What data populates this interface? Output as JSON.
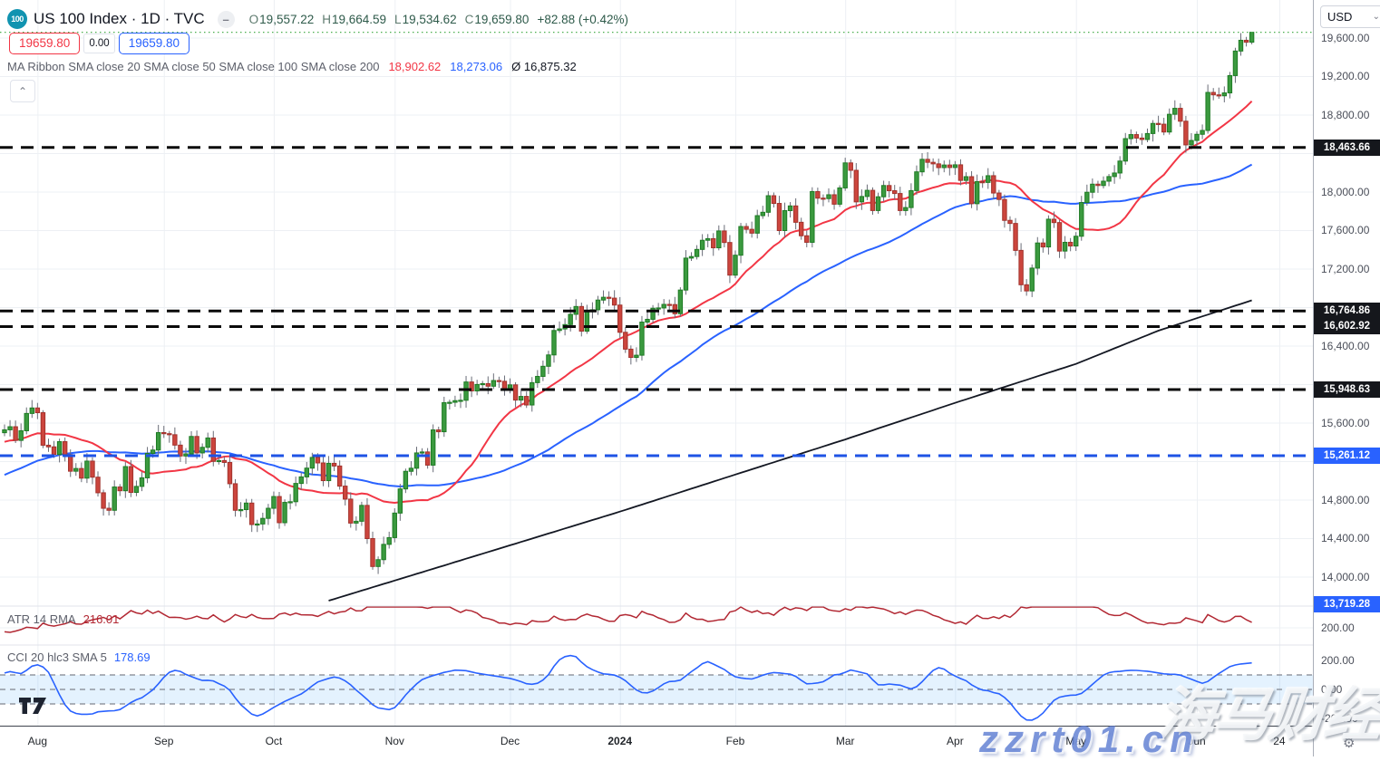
{
  "header": {
    "badge": "100",
    "title": "US 100 Index · 1D · TVC",
    "hide_icon": "–",
    "ohlc": {
      "o_l": "O",
      "o": "19,557.22",
      "h_l": "H",
      "h": "19,664.59",
      "l_l": "L",
      "l": "19,534.62",
      "c_l": "C",
      "c": "19,659.80",
      "change": "+82.88 (+0.42%)"
    },
    "sell": "19659.80",
    "spread": "0.00",
    "buy": "19659.80",
    "ma_ribbon": {
      "label": "MA Ribbon SMA close 20 SMA close 50 SMA close 100 SMA close 200",
      "sma20": "18,902.62",
      "sma50": "18,273.06",
      "sma200": "Ø 16,875.32"
    },
    "collapse_icon": "⌃"
  },
  "panes": {
    "atr": {
      "label": "ATR 14 RMA",
      "value": "216.01"
    },
    "cci": {
      "label": "CCI 20 hlc3 SMA 5",
      "value": "178.69"
    }
  },
  "axis": {
    "currency": "USD",
    "caret": "⌄",
    "price_ticks": [
      {
        "label": "19,600.00",
        "price": 19600
      },
      {
        "label": "19,200.00",
        "price": 19200
      },
      {
        "label": "18,800.00",
        "price": 18800
      },
      {
        "label": "18,000.00",
        "price": 18000
      },
      {
        "label": "17,600.00",
        "price": 17600
      },
      {
        "label": "17,200.00",
        "price": 17200
      },
      {
        "label": "16,400.00",
        "price": 16400
      },
      {
        "label": "15,600.00",
        "price": 15600
      },
      {
        "label": "14,800.00",
        "price": 14800
      },
      {
        "label": "14,400.00",
        "price": 14400
      },
      {
        "label": "14,000.00",
        "price": 14000
      }
    ],
    "atr_ticks": [
      {
        "label": "200.00",
        "value": 200
      }
    ],
    "cci_ticks": [
      {
        "label": "200.00",
        "value": 200
      },
      {
        "label": "0.00",
        "value": 0
      },
      {
        "label": "-200.00",
        "value": -200
      }
    ],
    "months": [
      {
        "label": "Aug",
        "bar": 6
      },
      {
        "label": "Sep",
        "bar": 29
      },
      {
        "label": "Oct",
        "bar": 49
      },
      {
        "label": "Nov",
        "bar": 71
      },
      {
        "label": "Dec",
        "bar": 92
      },
      {
        "label": "2024",
        "bar": 112
      },
      {
        "label": "Feb",
        "bar": 133
      },
      {
        "label": "Mar",
        "bar": 153
      },
      {
        "label": "Apr",
        "bar": 173
      },
      {
        "label": "May",
        "bar": 195
      },
      {
        "label": "Jun",
        "bar": 217
      },
      {
        "label": "24",
        "bar": 232
      }
    ]
  },
  "levels": [
    {
      "label": "18,463.66",
      "price": 18463.66,
      "style": "black",
      "line": true
    },
    {
      "label": "16,764.86",
      "price": 16764.86,
      "style": "black",
      "line": true
    },
    {
      "label": "16,602.92",
      "price": 16602.92,
      "style": "black",
      "line": true
    },
    {
      "label": "15,948.63",
      "price": 15948.63,
      "style": "black",
      "line": true
    },
    {
      "label": "15,261.12",
      "price": 15261.12,
      "style": "blue",
      "line": true
    },
    {
      "label": "13,719.28",
      "price": 13719.28,
      "style": "blue",
      "line": false
    }
  ],
  "current_price": {
    "value": 19659.8,
    "color": "#4CAF50"
  },
  "watermark": {
    "cjk": "海马财经",
    "url": "zzrt01.cn"
  },
  "colors": {
    "up_fill": "#3B9A3F",
    "up_stroke": "#1E7B24",
    "down_fill": "#CC453D",
    "down_stroke": "#A2322C",
    "wick": "#6A6D78",
    "sma20": "#F23645",
    "sma50": "#2962FF",
    "sma200": "#131722",
    "level_black": "#0A0A0A",
    "badge_black": "#15171C",
    "level_blue": "#1E53E5",
    "badge_blue": "#2962FF",
    "atr_line": "#B22833",
    "cci_line": "#2962FF",
    "grid": "#EDF0F4",
    "separator": "#E0E3EB"
  },
  "chart_data": {
    "type": "candlestick",
    "title": "US 100 Index, 1D, TVC",
    "x_axis": "Aug 2023 – Jun 2024 (daily bars)",
    "y_axis_range_main": [
      13700,
      19995
    ],
    "first_open": 15500,
    "closes": [
      15530,
      15562,
      15420,
      15520,
      15700,
      15757,
      15708,
      15370,
      15353,
      15274,
      15407,
      15273,
      15100,
      15128,
      15028,
      15205,
      15038,
      14876,
      14715,
      14694,
      14936,
      14897,
      15148,
      14880,
      14942,
      15031,
      15285,
      15320,
      15501,
      15490,
      15479,
      15371,
      15258,
      15280,
      15461,
      15290,
      15348,
      15445,
      15202,
      15211,
      15191,
      14970,
      14694,
      14701,
      14769,
      14546,
      14552,
      14610,
      14715,
      14837,
      14565,
      14776,
      14783,
      14973,
      15041,
      15132,
      15243,
      15186,
      15002,
      15182,
      15154,
      14945,
      14810,
      14561,
      14580,
      14745,
      14400,
      14110,
      14181,
      14340,
      14410,
      14665,
      14916,
      15099,
      15131,
      15290,
      15300,
      15163,
      15529,
      15510,
      15812,
      15816,
      15833,
      15837,
      16027,
      15934,
      16001,
      16010,
      15983,
      16042,
      16034,
      15948,
      15997,
      15839,
      15877,
      15788,
      16020,
      16085,
      16190,
      16308,
      16562,
      16578,
      16623,
      16730,
      16811,
      16555,
      16757,
      16777,
      16878,
      16907,
      16898,
      16826,
      16543,
      16368,
      16282,
      16305,
      16649,
      16678,
      16793,
      16796,
      16833,
      16831,
      16736,
      16982,
      17314,
      17330,
      17404,
      17499,
      17516,
      17421,
      17596,
      17476,
      17137,
      17344,
      17642,
      17613,
      17573,
      17755,
      17790,
      17962,
      17882,
      17600,
      17807,
      17856,
      17686,
      17546,
      17478,
      18005,
      17937,
      17932,
      17972,
      17874,
      18043,
      18303,
      18226,
      17898,
      17954,
      18018,
      17808,
      17951,
      18068,
      18014,
      17985,
      17808,
      17839,
      18015,
      18210,
      18340,
      18309,
      18293,
      18254,
      18281,
      18255,
      18283,
      18121,
      18160,
      17879,
      18108,
      18100,
      18170,
      17990,
      17923,
      17706,
      17674,
      17394,
      17037,
      16973,
      17210,
      17471,
      17430,
      17718,
      17683,
      17387,
      17478,
      17440,
      17541,
      17891,
      17998,
      18082,
      18068,
      18113,
      18161,
      18198,
      18322,
      18555,
      18597,
      18561,
      18546,
      18608,
      18713,
      18705,
      18624,
      18808,
      18870,
      18736,
      18490,
      18536,
      18600,
      18640,
      19035,
      19010,
      19000,
      19030,
      19210,
      19465,
      19577,
      19557,
      19659.8
    ],
    "warmup_closes": [
      14250,
      14320,
      14280,
      14380,
      14450,
      14410,
      14500,
      14570,
      14530,
      14620,
      14690,
      14650,
      14740,
      14800,
      14760,
      14850,
      14910,
      14870,
      14960,
      15020,
      14980,
      15060,
      15120,
      15080,
      15150,
      15210,
      15170,
      15240,
      15200,
      15260,
      15210,
      15270,
      15330,
      15290,
      15350,
      15300,
      15360,
      15420,
      15380,
      15440,
      15400,
      15350,
      15420,
      15470,
      15430,
      15480,
      15440,
      15490,
      15450,
      15500
    ],
    "last_ohlc": {
      "o": 19557.22,
      "h": 19664.59,
      "l": 19534.62,
      "c": 19659.8
    },
    "sma200_anchors": [
      [
        59,
        13755
      ],
      [
        92,
        14330
      ],
      [
        112,
        14680
      ],
      [
        133,
        15065
      ],
      [
        153,
        15430
      ],
      [
        173,
        15810
      ],
      [
        195,
        16215
      ],
      [
        210,
        16560
      ],
      [
        227,
        16875
      ]
    ],
    "indicators": [
      "MA Ribbon SMA 20/50/100/200",
      "ATR 14 RMA = 216.01",
      "CCI 20 hlc3 SMA 5 = 178.69"
    ]
  }
}
